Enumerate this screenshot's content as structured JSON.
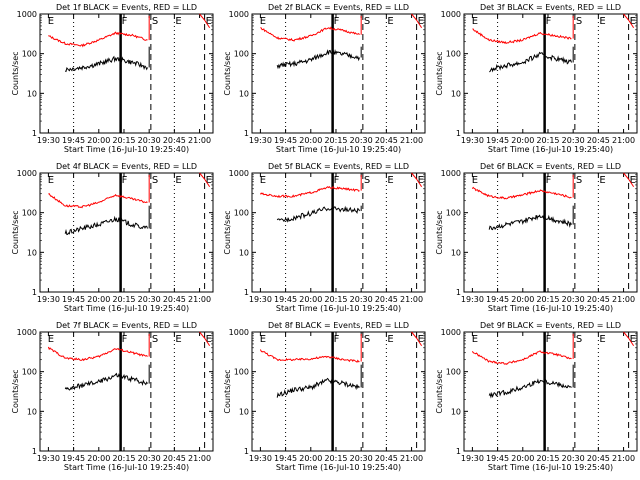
{
  "chart_data": {
    "type": "line",
    "common": {
      "ylabel": "Counts/sec",
      "xlabel": "Start Time (16-Jul-10 19:25:40)",
      "xticks": [
        "19:30",
        "19:45",
        "20:00",
        "20:15",
        "20:30",
        "20:45",
        "21:00"
      ],
      "yticks": [
        "1",
        "10",
        "100",
        "1000"
      ],
      "ylim": [
        1,
        1000
      ],
      "yscale": "log",
      "legend": "BLACK = Events, RED = LLD",
      "markers": [
        {
          "label": "E",
          "t": "19:29"
        },
        {
          "label": "F",
          "t": "20:13"
        },
        {
          "label": "S",
          "t": "20:31"
        },
        {
          "label": "E",
          "t": "20:45"
        },
        {
          "label": "E",
          "t": "21:03"
        }
      ],
      "colors": {
        "events": "#000000",
        "lld": "#ff0000"
      }
    },
    "panels": [
      {
        "title": "Det 1f BLACK = Events, RED = LLD",
        "lld": [
          {
            "t": "19:30",
            "v": 280
          },
          {
            "t": "19:40",
            "v": 180
          },
          {
            "t": "19:50",
            "v": 160
          },
          {
            "t": "20:00",
            "v": 220
          },
          {
            "t": "20:10",
            "v": 330
          },
          {
            "t": "20:20",
            "v": 290
          },
          {
            "t": "20:29",
            "v": 220
          }
        ],
        "events": [
          {
            "t": "19:40",
            "v": 40
          },
          {
            "t": "19:50",
            "v": 45
          },
          {
            "t": "20:00",
            "v": 55
          },
          {
            "t": "20:10",
            "v": 75
          },
          {
            "t": "20:20",
            "v": 60
          },
          {
            "t": "20:29",
            "v": 45
          }
        ]
      },
      {
        "title": "Det 2f BLACK = Events, RED = LLD",
        "lld": [
          {
            "t": "19:30",
            "v": 450
          },
          {
            "t": "19:40",
            "v": 250
          },
          {
            "t": "19:50",
            "v": 220
          },
          {
            "t": "20:00",
            "v": 280
          },
          {
            "t": "20:10",
            "v": 450
          },
          {
            "t": "20:20",
            "v": 380
          },
          {
            "t": "20:29",
            "v": 300
          }
        ],
        "events": [
          {
            "t": "19:40",
            "v": 50
          },
          {
            "t": "19:50",
            "v": 55
          },
          {
            "t": "20:00",
            "v": 70
          },
          {
            "t": "20:10",
            "v": 110
          },
          {
            "t": "20:20",
            "v": 95
          },
          {
            "t": "20:29",
            "v": 80
          }
        ]
      },
      {
        "title": "Det 3f BLACK = Events, RED = LLD",
        "lld": [
          {
            "t": "19:30",
            "v": 420
          },
          {
            "t": "19:40",
            "v": 220
          },
          {
            "t": "19:50",
            "v": 190
          },
          {
            "t": "20:00",
            "v": 220
          },
          {
            "t": "20:10",
            "v": 330
          },
          {
            "t": "20:20",
            "v": 280
          },
          {
            "t": "20:29",
            "v": 240
          }
        ],
        "events": [
          {
            "t": "19:40",
            "v": 40
          },
          {
            "t": "19:50",
            "v": 50
          },
          {
            "t": "20:00",
            "v": 60
          },
          {
            "t": "20:10",
            "v": 95
          },
          {
            "t": "20:20",
            "v": 75
          },
          {
            "t": "20:29",
            "v": 60
          }
        ]
      },
      {
        "title": "Det 4f BLACK = Events, RED = LLD",
        "lld": [
          {
            "t": "19:30",
            "v": 300
          },
          {
            "t": "19:40",
            "v": 150
          },
          {
            "t": "19:50",
            "v": 140
          },
          {
            "t": "20:00",
            "v": 180
          },
          {
            "t": "20:10",
            "v": 280
          },
          {
            "t": "20:20",
            "v": 220
          },
          {
            "t": "20:29",
            "v": 180
          }
        ],
        "events": [
          {
            "t": "19:40",
            "v": 30
          },
          {
            "t": "19:50",
            "v": 40
          },
          {
            "t": "20:00",
            "v": 50
          },
          {
            "t": "20:10",
            "v": 70
          },
          {
            "t": "20:20",
            "v": 50
          },
          {
            "t": "20:29",
            "v": 40
          }
        ]
      },
      {
        "title": "Det 5f BLACK = Events, RED = LLD",
        "lld": [
          {
            "t": "19:30",
            "v": 300
          },
          {
            "t": "19:40",
            "v": 260
          },
          {
            "t": "19:50",
            "v": 260
          },
          {
            "t": "20:00",
            "v": 320
          },
          {
            "t": "20:10",
            "v": 430
          },
          {
            "t": "20:20",
            "v": 400
          },
          {
            "t": "20:29",
            "v": 360
          }
        ],
        "events": [
          {
            "t": "19:40",
            "v": 60
          },
          {
            "t": "19:50",
            "v": 75
          },
          {
            "t": "20:00",
            "v": 95
          },
          {
            "t": "20:10",
            "v": 130
          },
          {
            "t": "20:20",
            "v": 120
          },
          {
            "t": "20:29",
            "v": 110
          }
        ]
      },
      {
        "title": "Det 6f BLACK = Events, RED = LLD",
        "lld": [
          {
            "t": "19:30",
            "v": 420
          },
          {
            "t": "19:40",
            "v": 260
          },
          {
            "t": "19:50",
            "v": 230
          },
          {
            "t": "20:00",
            "v": 280
          },
          {
            "t": "20:10",
            "v": 360
          },
          {
            "t": "20:20",
            "v": 300
          },
          {
            "t": "20:29",
            "v": 240
          }
        ],
        "events": [
          {
            "t": "19:40",
            "v": 40
          },
          {
            "t": "19:50",
            "v": 50
          },
          {
            "t": "20:00",
            "v": 60
          },
          {
            "t": "20:10",
            "v": 85
          },
          {
            "t": "20:20",
            "v": 65
          },
          {
            "t": "20:29",
            "v": 50
          }
        ]
      },
      {
        "title": "Det 7f BLACK = Events, RED = LLD",
        "lld": [
          {
            "t": "19:30",
            "v": 400
          },
          {
            "t": "19:40",
            "v": 220
          },
          {
            "t": "19:50",
            "v": 200
          },
          {
            "t": "20:00",
            "v": 240
          },
          {
            "t": "20:10",
            "v": 380
          },
          {
            "t": "20:20",
            "v": 300
          },
          {
            "t": "20:29",
            "v": 240
          }
        ],
        "events": [
          {
            "t": "19:40",
            "v": 35
          },
          {
            "t": "19:50",
            "v": 45
          },
          {
            "t": "20:00",
            "v": 55
          },
          {
            "t": "20:10",
            "v": 80
          },
          {
            "t": "20:20",
            "v": 65
          },
          {
            "t": "20:29",
            "v": 50
          }
        ]
      },
      {
        "title": "Det 8f BLACK = Events, RED = LLD",
        "lld": [
          {
            "t": "19:30",
            "v": 350
          },
          {
            "t": "19:40",
            "v": 200
          },
          {
            "t": "19:50",
            "v": 200
          },
          {
            "t": "20:00",
            "v": 210
          },
          {
            "t": "20:10",
            "v": 240
          },
          {
            "t": "20:20",
            "v": 200
          },
          {
            "t": "20:29",
            "v": 180
          }
        ],
        "events": [
          {
            "t": "19:40",
            "v": 25
          },
          {
            "t": "19:50",
            "v": 35
          },
          {
            "t": "20:00",
            "v": 40
          },
          {
            "t": "20:10",
            "v": 60
          },
          {
            "t": "20:20",
            "v": 50
          },
          {
            "t": "20:29",
            "v": 40
          }
        ]
      },
      {
        "title": "Det 9f BLACK = Events, RED = LLD",
        "lld": [
          {
            "t": "19:30",
            "v": 320
          },
          {
            "t": "19:40",
            "v": 180
          },
          {
            "t": "19:50",
            "v": 160
          },
          {
            "t": "20:00",
            "v": 200
          },
          {
            "t": "20:10",
            "v": 320
          },
          {
            "t": "20:20",
            "v": 270
          },
          {
            "t": "20:29",
            "v": 210
          }
        ],
        "events": [
          {
            "t": "19:40",
            "v": 25
          },
          {
            "t": "19:50",
            "v": 30
          },
          {
            "t": "20:00",
            "v": 40
          },
          {
            "t": "20:10",
            "v": 60
          },
          {
            "t": "20:20",
            "v": 50
          },
          {
            "t": "20:29",
            "v": 40
          }
        ]
      }
    ]
  }
}
